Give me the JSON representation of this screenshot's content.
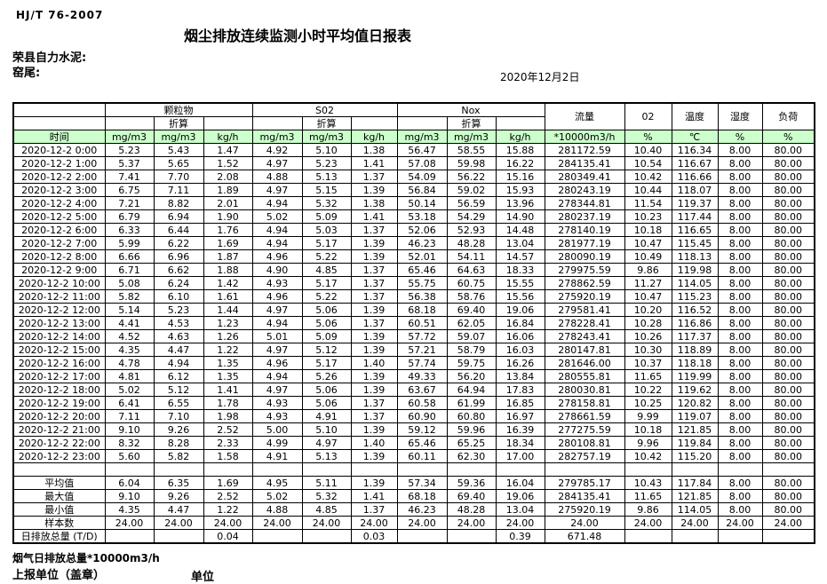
{
  "page": {
    "standard": "HJ/T  76-2007",
    "title": "烟尘排放连续监测小时平均值日报表",
    "company": "荣县自力水泥:",
    "site": "窑尾:",
    "date": "2020年12月2日"
  },
  "table": {
    "time_header": "时间",
    "groups": [
      {
        "label": "颗粒物",
        "sub": "折算"
      },
      {
        "label": "S02",
        "sub": "折算"
      },
      {
        "label": "Nox",
        "sub": "折算"
      }
    ],
    "single_columns": [
      "流量",
      "02",
      "温度",
      "湿度",
      "负荷"
    ],
    "units": [
      "mg/m3",
      "mg/m3",
      "kg/h",
      "mg/m3",
      "mg/m3",
      "kg/h",
      "mg/m3",
      "mg/m3",
      "kg/h",
      "*10000m3/h",
      "%",
      "℃",
      "%",
      "%"
    ],
    "rows": [
      {
        "time": "2020-12-2 0:00",
        "values": [
          "5.23",
          "5.43",
          "1.47",
          "4.92",
          "5.10",
          "1.38",
          "56.47",
          "58.55",
          "15.88",
          "281172.59",
          "10.40",
          "116.34",
          "8.00",
          "80.00"
        ]
      },
      {
        "time": "2020-12-2 1:00",
        "values": [
          "5.37",
          "5.65",
          "1.52",
          "4.97",
          "5.23",
          "1.41",
          "57.08",
          "59.98",
          "16.22",
          "284135.41",
          "10.54",
          "116.67",
          "8.00",
          "80.00"
        ]
      },
      {
        "time": "2020-12-2 2:00",
        "values": [
          "7.41",
          "7.70",
          "2.08",
          "4.88",
          "5.13",
          "1.37",
          "54.09",
          "56.22",
          "15.16",
          "280349.41",
          "10.42",
          "116.66",
          "8.00",
          "80.00"
        ]
      },
      {
        "time": "2020-12-2 3:00",
        "values": [
          "6.75",
          "7.11",
          "1.89",
          "4.97",
          "5.15",
          "1.39",
          "56.84",
          "59.02",
          "15.93",
          "280243.19",
          "10.44",
          "118.07",
          "8.00",
          "80.00"
        ]
      },
      {
        "time": "2020-12-2 4:00",
        "values": [
          "7.21",
          "8.82",
          "2.01",
          "4.94",
          "5.32",
          "1.38",
          "50.14",
          "56.59",
          "13.96",
          "278344.81",
          "11.54",
          "119.37",
          "8.00",
          "80.00"
        ]
      },
      {
        "time": "2020-12-2 5:00",
        "values": [
          "6.79",
          "6.94",
          "1.90",
          "5.02",
          "5.09",
          "1.41",
          "53.18",
          "54.29",
          "14.90",
          "280237.19",
          "10.23",
          "117.44",
          "8.00",
          "80.00"
        ]
      },
      {
        "time": "2020-12-2 6:00",
        "values": [
          "6.33",
          "6.44",
          "1.76",
          "4.94",
          "5.03",
          "1.37",
          "52.06",
          "52.93",
          "14.48",
          "278140.19",
          "10.18",
          "116.65",
          "8.00",
          "80.00"
        ]
      },
      {
        "time": "2020-12-2 7:00",
        "values": [
          "5.99",
          "6.22",
          "1.69",
          "4.94",
          "5.17",
          "1.39",
          "46.23",
          "48.28",
          "13.04",
          "281977.19",
          "10.47",
          "115.45",
          "8.00",
          "80.00"
        ]
      },
      {
        "time": "2020-12-2 8:00",
        "values": [
          "6.66",
          "6.96",
          "1.87",
          "4.96",
          "5.22",
          "1.39",
          "52.01",
          "54.11",
          "14.57",
          "280090.19",
          "10.49",
          "118.13",
          "8.00",
          "80.00"
        ]
      },
      {
        "time": "2020-12-2 9:00",
        "values": [
          "6.71",
          "6.62",
          "1.88",
          "4.90",
          "4.85",
          "1.37",
          "65.46",
          "64.63",
          "18.33",
          "279975.59",
          "9.86",
          "119.98",
          "8.00",
          "80.00"
        ]
      },
      {
        "time": "2020-12-2 10:00",
        "values": [
          "5.08",
          "6.24",
          "1.42",
          "4.93",
          "5.17",
          "1.37",
          "55.75",
          "60.75",
          "15.55",
          "278862.59",
          "11.27",
          "114.05",
          "8.00",
          "80.00"
        ]
      },
      {
        "time": "2020-12-2 11:00",
        "values": [
          "5.82",
          "6.10",
          "1.61",
          "4.96",
          "5.22",
          "1.37",
          "56.38",
          "58.76",
          "15.56",
          "275920.19",
          "10.47",
          "115.23",
          "8.00",
          "80.00"
        ]
      },
      {
        "time": "2020-12-2 12:00",
        "values": [
          "5.14",
          "5.23",
          "1.44",
          "4.97",
          "5.06",
          "1.39",
          "68.18",
          "69.40",
          "19.06",
          "279581.41",
          "10.20",
          "116.52",
          "8.00",
          "80.00"
        ]
      },
      {
        "time": "2020-12-2 13:00",
        "values": [
          "4.41",
          "4.53",
          "1.23",
          "4.94",
          "5.06",
          "1.37",
          "60.51",
          "62.05",
          "16.84",
          "278228.41",
          "10.28",
          "116.86",
          "8.00",
          "80.00"
        ]
      },
      {
        "time": "2020-12-2 14:00",
        "values": [
          "4.52",
          "4.63",
          "1.26",
          "5.01",
          "5.09",
          "1.39",
          "57.72",
          "59.07",
          "16.06",
          "278243.41",
          "10.26",
          "117.37",
          "8.00",
          "80.00"
        ]
      },
      {
        "time": "2020-12-2 15:00",
        "values": [
          "4.35",
          "4.47",
          "1.22",
          "4.97",
          "5.12",
          "1.39",
          "57.21",
          "58.79",
          "16.03",
          "280147.81",
          "10.30",
          "118.89",
          "8.00",
          "80.00"
        ]
      },
      {
        "time": "2020-12-2 16:00",
        "values": [
          "4.78",
          "4.94",
          "1.35",
          "4.96",
          "5.17",
          "1.40",
          "57.74",
          "59.75",
          "16.26",
          "281646.00",
          "10.37",
          "118.18",
          "8.00",
          "80.00"
        ]
      },
      {
        "time": "2020-12-2 17:00",
        "values": [
          "4.81",
          "6.12",
          "1.35",
          "4.94",
          "5.26",
          "1.39",
          "49.33",
          "56.20",
          "13.84",
          "280555.81",
          "11.65",
          "119.99",
          "8.00",
          "80.00"
        ]
      },
      {
        "time": "2020-12-2 18:00",
        "values": [
          "5.02",
          "5.12",
          "1.41",
          "4.97",
          "5.06",
          "1.39",
          "63.67",
          "64.94",
          "17.83",
          "280030.81",
          "10.22",
          "119.62",
          "8.00",
          "80.00"
        ]
      },
      {
        "time": "2020-12-2 19:00",
        "values": [
          "6.41",
          "6.55",
          "1.78",
          "4.93",
          "5.06",
          "1.37",
          "60.58",
          "61.99",
          "16.85",
          "278158.81",
          "10.25",
          "120.82",
          "8.00",
          "80.00"
        ]
      },
      {
        "time": "2020-12-2 20:00",
        "values": [
          "7.11",
          "7.10",
          "1.98",
          "4.93",
          "4.91",
          "1.37",
          "60.90",
          "60.80",
          "16.97",
          "278661.59",
          "9.99",
          "119.07",
          "8.00",
          "80.00"
        ]
      },
      {
        "time": "2020-12-2 21:00",
        "values": [
          "9.10",
          "9.26",
          "2.52",
          "5.00",
          "5.10",
          "1.39",
          "59.12",
          "59.96",
          "16.39",
          "277275.59",
          "10.18",
          "121.85",
          "8.00",
          "80.00"
        ]
      },
      {
        "time": "2020-12-2 22:00",
        "values": [
          "8.32",
          "8.28",
          "2.33",
          "4.99",
          "4.97",
          "1.40",
          "65.46",
          "65.25",
          "18.34",
          "280108.81",
          "9.96",
          "119.84",
          "8.00",
          "80.00"
        ]
      },
      {
        "time": "2020-12-2 23:00",
        "values": [
          "5.60",
          "5.82",
          "1.58",
          "4.91",
          "5.13",
          "1.39",
          "60.11",
          "62.30",
          "17.00",
          "282757.19",
          "10.42",
          "115.20",
          "8.00",
          "80.00"
        ]
      }
    ],
    "summary": [
      {
        "label": "平均值",
        "values": [
          "6.04",
          "6.35",
          "1.69",
          "4.95",
          "5.11",
          "1.39",
          "57.34",
          "59.36",
          "16.04",
          "279785.17",
          "10.43",
          "117.84",
          "8.00",
          "80.00"
        ]
      },
      {
        "label": "最大值",
        "values": [
          "9.10",
          "9.26",
          "2.52",
          "5.02",
          "5.32",
          "1.41",
          "68.18",
          "69.40",
          "19.06",
          "284135.41",
          "11.65",
          "121.85",
          "8.00",
          "80.00"
        ]
      },
      {
        "label": "最小值",
        "values": [
          "4.35",
          "4.47",
          "1.22",
          "4.88",
          "4.85",
          "1.37",
          "46.23",
          "48.28",
          "13.04",
          "275920.19",
          "9.86",
          "114.05",
          "8.00",
          "80.00"
        ]
      },
      {
        "label": "样本数",
        "values": [
          "24.00",
          "24.00",
          "24.00",
          "24.00",
          "24.00",
          "24.00",
          "24.00",
          "24.00",
          "24.00",
          "24.00",
          "24.00",
          "24.00",
          "24.00",
          "24.00"
        ]
      },
      {
        "label": "日排放总量 (T/D)",
        "values": [
          "",
          "",
          "0.04",
          "",
          "",
          "0.03",
          "",
          "",
          "0.39",
          "671.48",
          "",
          "",
          "",
          ""
        ]
      }
    ]
  },
  "footer": {
    "note": "烟气日排放总量*10000m3/h",
    "report_unit": "上报单位（盖章）",
    "unit_label": "单位"
  },
  "colors": {
    "header_green": "#ccffcc",
    "border": "#000000"
  }
}
